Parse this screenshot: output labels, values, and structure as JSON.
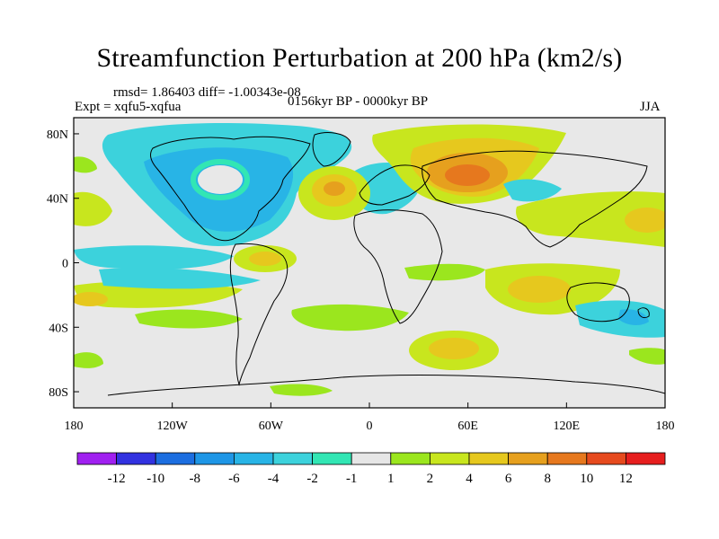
{
  "title": "Streamfunction Perturbation at 200 hPa (km2/s)",
  "stats": "rmsd= 1.86403  diff= -1.00343e-08",
  "experiment": "Expt = xqfu5-xqfua",
  "period": "0156kyr BP - 0000kyr BP",
  "season": "JJA",
  "lat_ticks": [
    "80N",
    "40N",
    "0",
    "40S",
    "80S"
  ],
  "lon_ticks": [
    "180",
    "120W",
    "60W",
    "0",
    "60E",
    "120E",
    "180"
  ],
  "colorbar": {
    "labels": [
      "-12",
      "-10",
      "-8",
      "-6",
      "-4",
      "-2",
      "-1",
      "1",
      "2",
      "4",
      "6",
      "8",
      "10",
      "12"
    ],
    "colors": [
      "#a020f0",
      "#3232e0",
      "#1c6ee0",
      "#1e96e6",
      "#28b4e6",
      "#3cd2dc",
      "#32e6b4",
      "#e6e6e6",
      "#9be61e",
      "#c8e61e",
      "#e6c81e",
      "#e6a01e",
      "#e6781e",
      "#e64a1e",
      "#e61e1e"
    ]
  }
}
